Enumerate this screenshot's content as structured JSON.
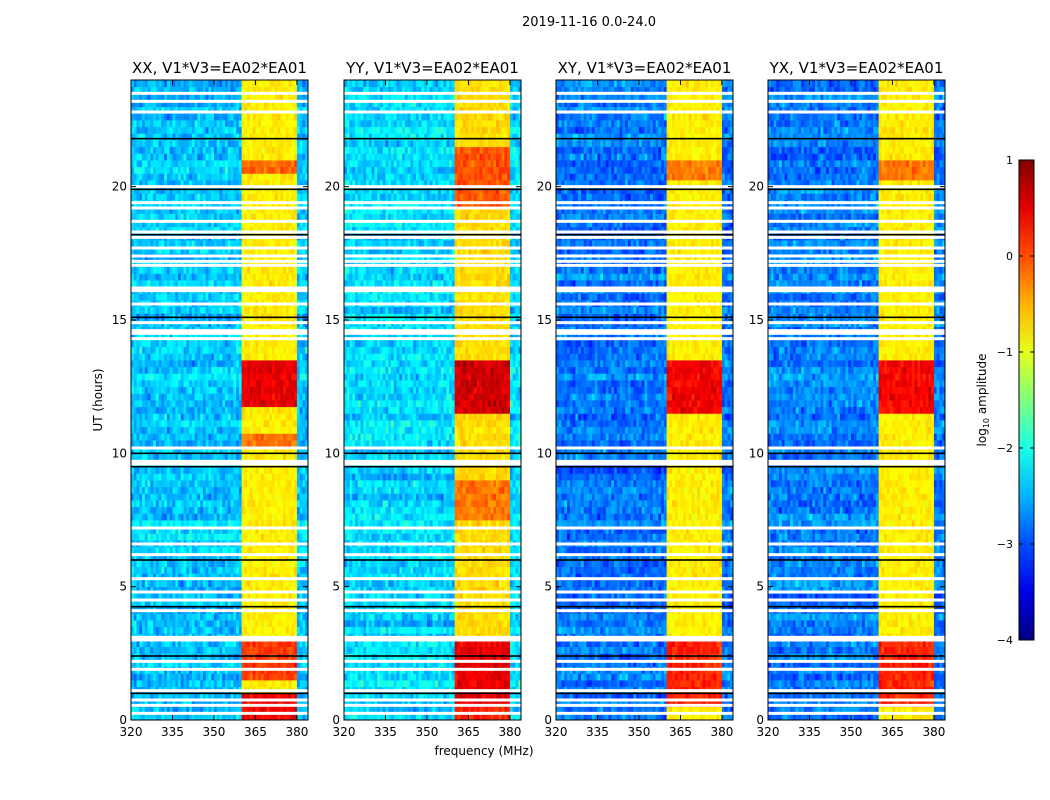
{
  "suptitle": "2019-11-16 0.0-24.0",
  "xlabel": "frequency (MHz)",
  "ylabel": "UT (hours)",
  "colorbar": {
    "label_main": "log",
    "label_sub": "10",
    "label_rest": " amplitude",
    "range": [
      -4,
      1
    ],
    "ticks": [
      1,
      0,
      -1,
      -2,
      -3,
      -4
    ],
    "tick_labels": [
      "1",
      "0",
      "−1",
      "−2",
      "−3",
      "−4"
    ],
    "colormap": "jet"
  },
  "chart_data": [
    {
      "type": "heatmap",
      "title": "XX, V1*V3=EA02*EA01",
      "xlim": [
        320,
        384
      ],
      "ylim": [
        0,
        24
      ],
      "xticks": [
        320,
        335,
        350,
        365,
        380
      ],
      "xtick_labels": [
        "320",
        "335",
        "350",
        "365",
        "380"
      ],
      "yticks": [
        0,
        5,
        10,
        15,
        20
      ],
      "ytick_labels": [
        "0",
        "5",
        "10",
        "15",
        "20"
      ],
      "background_log10": -2.4,
      "rfi_segments_mhz": [
        [
          360,
          364.5
        ],
        [
          365.5,
          369.5
        ],
        [
          370.5,
          374.5
        ],
        [
          375.5,
          380
        ]
      ],
      "rfi_log10": -0.8,
      "strong_intervals": [
        [
          0.0,
          1.0,
          0.4
        ],
        [
          1.5,
          3.0,
          0.1
        ],
        [
          11.8,
          13.6,
          0.5
        ],
        [
          20.4,
          21.0,
          -0.1
        ],
        [
          10.3,
          10.8,
          -0.2
        ]
      ],
      "flagged_times": [
        23.5,
        23.2,
        22.8,
        20.0,
        19.4,
        19.2,
        18.7,
        18.3,
        18.1,
        17.7,
        17.4,
        17.2,
        17.05,
        16.2,
        16.1,
        15.6,
        14.9,
        14.6,
        14.5,
        14.3,
        10.2,
        9.7,
        9.6,
        7.2,
        6.6,
        6.2,
        5.3,
        4.8,
        4.5,
        4.1,
        3.1,
        3.0,
        2.2,
        1.9,
        1.1,
        0.75,
        0.55,
        0.25
      ],
      "black_line_times": [
        21.8,
        19.9,
        18.2,
        15.1,
        10.0,
        9.5,
        6.0,
        4.25,
        2.4,
        1.0
      ]
    },
    {
      "type": "heatmap",
      "title": "YY, V1*V3=EA02*EA01",
      "xlim": [
        320,
        384
      ],
      "ylim": [
        0,
        24
      ],
      "xticks": [
        320,
        335,
        350,
        365,
        380
      ],
      "xtick_labels": [
        "320",
        "335",
        "350",
        "365",
        "380"
      ],
      "yticks": [
        0,
        5,
        10,
        15,
        20
      ],
      "ytick_labels": [
        "0",
        "5",
        "10",
        "15",
        "20"
      ],
      "background_log10": -2.3,
      "rfi_segments_mhz": [
        [
          360,
          364.5
        ],
        [
          365.5,
          369.5
        ],
        [
          370.5,
          374.5
        ],
        [
          375.5,
          380
        ]
      ],
      "rfi_log10": -0.7,
      "strong_intervals": [
        [
          0.0,
          0.6,
          0.2
        ],
        [
          0.6,
          3.0,
          0.5
        ],
        [
          11.5,
          13.6,
          0.6
        ],
        [
          19.3,
          21.5,
          0.0
        ],
        [
          7.5,
          9.0,
          -0.2
        ]
      ],
      "flagged_times": [
        23.5,
        23.2,
        22.8,
        20.0,
        19.4,
        19.2,
        18.7,
        18.3,
        18.1,
        17.7,
        17.4,
        17.2,
        17.05,
        16.2,
        16.1,
        15.6,
        14.9,
        14.6,
        14.5,
        14.3,
        10.2,
        9.7,
        9.6,
        7.2,
        6.6,
        6.2,
        5.3,
        4.8,
        4.5,
        4.1,
        3.1,
        3.0,
        2.2,
        1.9,
        1.1,
        0.75,
        0.55,
        0.25
      ],
      "black_line_times": [
        21.8,
        19.9,
        18.2,
        15.1,
        10.0,
        9.5,
        6.0,
        4.25,
        2.4,
        1.0
      ]
    },
    {
      "type": "heatmap",
      "title": "XY, V1*V3=EA02*EA01",
      "xlim": [
        320,
        384
      ],
      "ylim": [
        0,
        24
      ],
      "xticks": [
        320,
        335,
        350,
        365,
        380
      ],
      "xtick_labels": [
        "320",
        "335",
        "350",
        "365",
        "380"
      ],
      "yticks": [
        0,
        5,
        10,
        15,
        20
      ],
      "ytick_labels": [
        "0",
        "5",
        "10",
        "15",
        "20"
      ],
      "background_log10": -2.8,
      "rfi_segments_mhz": [
        [
          360,
          364.5
        ],
        [
          365.5,
          369.5
        ],
        [
          370.5,
          374.5
        ],
        [
          375.5,
          380
        ]
      ],
      "rfi_log10": -0.8,
      "strong_intervals": [
        [
          0.5,
          3.0,
          0.2
        ],
        [
          11.6,
          13.6,
          0.4
        ],
        [
          20.2,
          21.0,
          -0.2
        ]
      ],
      "flagged_times": [
        23.5,
        23.2,
        22.8,
        20.0,
        19.4,
        19.2,
        18.7,
        18.3,
        18.1,
        17.7,
        17.4,
        17.2,
        17.05,
        16.2,
        16.1,
        15.6,
        14.9,
        14.6,
        14.5,
        14.3,
        10.2,
        9.7,
        9.6,
        7.2,
        6.6,
        6.2,
        5.3,
        4.8,
        4.5,
        4.1,
        3.1,
        3.0,
        2.2,
        1.9,
        1.1,
        0.75,
        0.55,
        0.25
      ],
      "black_line_times": [
        21.8,
        19.9,
        18.2,
        15.1,
        10.0,
        9.5,
        6.0,
        4.25,
        2.4,
        1.0
      ]
    },
    {
      "type": "heatmap",
      "title": "YX, V1*V3=EA02*EA01",
      "xlim": [
        320,
        384
      ],
      "ylim": [
        0,
        24
      ],
      "xticks": [
        320,
        335,
        350,
        365,
        380
      ],
      "xtick_labels": [
        "320",
        "335",
        "350",
        "365",
        "380"
      ],
      "yticks": [
        0,
        5,
        10,
        15,
        20
      ],
      "ytick_labels": [
        "0",
        "5",
        "10",
        "15",
        "20"
      ],
      "background_log10": -2.75,
      "rfi_segments_mhz": [
        [
          360,
          364.5
        ],
        [
          365.5,
          369.5
        ],
        [
          370.5,
          374.5
        ],
        [
          375.5,
          380
        ]
      ],
      "rfi_log10": -0.8,
      "strong_intervals": [
        [
          0.5,
          3.0,
          0.2
        ],
        [
          11.6,
          13.6,
          0.4
        ],
        [
          20.2,
          21.0,
          -0.2
        ]
      ],
      "flagged_times": [
        23.5,
        23.2,
        22.8,
        20.0,
        19.4,
        19.2,
        18.7,
        18.3,
        18.1,
        17.7,
        17.4,
        17.2,
        17.05,
        16.2,
        16.1,
        15.6,
        14.9,
        14.6,
        14.5,
        14.3,
        10.2,
        9.7,
        9.6,
        7.2,
        6.6,
        6.2,
        5.3,
        4.8,
        4.5,
        4.1,
        3.1,
        3.0,
        2.2,
        1.9,
        1.1,
        0.75,
        0.55,
        0.25
      ],
      "black_line_times": [
        21.8,
        19.9,
        18.2,
        15.1,
        10.0,
        9.5,
        6.0,
        4.25,
        2.4,
        1.0
      ]
    }
  ]
}
